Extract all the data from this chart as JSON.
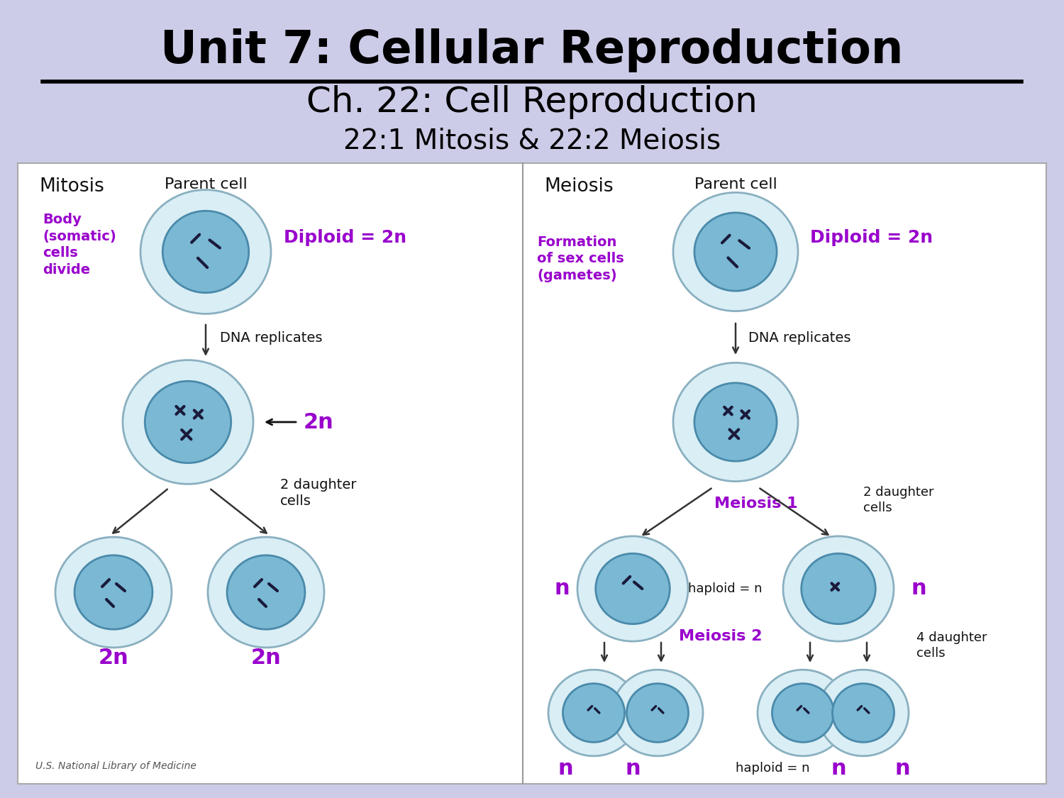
{
  "bg_color": "#cccce8",
  "title1": "Unit 7: Cellular Reproduction",
  "title2": "Ch. 22: Cell Reproduction",
  "title3": "22:1 Mitosis & 22:2 Meiosis",
  "purple": "#9900cc",
  "dark_text": "#111111",
  "attribution": "U.S. National Library of Medicine",
  "cell_outer_face": "#daeef5",
  "cell_outer_edge": "#8ab0c0",
  "cell_inner_face": "#7ab8d4",
  "cell_inner_edge": "#4a8aaa",
  "chrom_color": "#1a1a3a"
}
